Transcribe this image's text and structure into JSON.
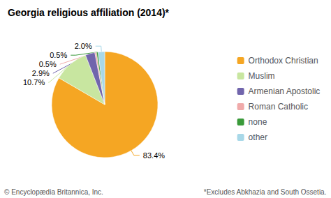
{
  "chart_data": {
    "type": "pie",
    "title": "Georgia religious affiliation (2014)*",
    "categories": [
      "Orthodox Christian",
      "Muslim",
      "Armenian Apostolic",
      "Roman Catholic",
      "none",
      "other"
    ],
    "values": [
      83.4,
      10.7,
      2.9,
      0.5,
      0.5,
      2.0
    ],
    "value_labels": [
      "83.4%",
      "10.7%",
      "2.9%",
      "0.5%",
      "0.5%",
      "2.0%"
    ],
    "data_labels": true,
    "colors": [
      "#F5A623",
      "#C8E6A0",
      "#7165AC",
      "#F0AAAA",
      "#3A9A3A",
      "#A8D8E8"
    ],
    "legend": "right",
    "annotations": [
      "© Encyclopædia Britannica, Inc.",
      "*Excludes Abkhazia and South Ossetia."
    ]
  }
}
